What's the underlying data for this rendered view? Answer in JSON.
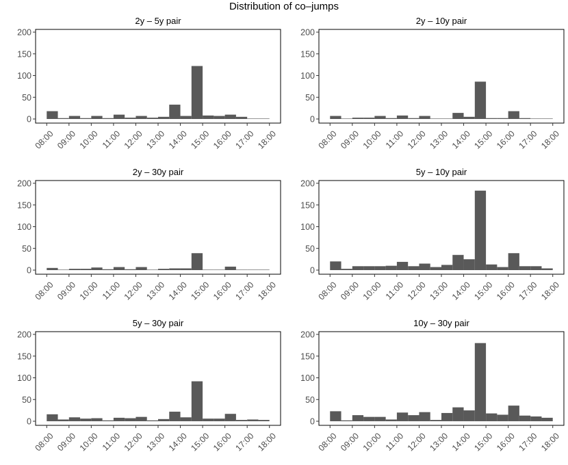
{
  "figure": {
    "title": "Distribution of co–jumps"
  },
  "chart_data": [
    {
      "type": "bar",
      "title": "2y – 5y pair",
      "ylim": [
        0,
        200
      ],
      "yticks": [
        0,
        50,
        100,
        150,
        200
      ],
      "xticks": [
        "08:00",
        "09:00",
        "10:00",
        "11:00",
        "12:00",
        "13:00",
        "14:00",
        "15:00",
        "16:00",
        "17:00",
        "18:00"
      ],
      "bin_start_hours": [
        8,
        8.5,
        9,
        9.5,
        10,
        10.5,
        11,
        11.5,
        12,
        12.5,
        13,
        13.5,
        14,
        14.5,
        15,
        15.5,
        16,
        16.5,
        17,
        17.5
      ],
      "values": [
        18,
        2,
        7,
        2,
        7,
        2,
        10,
        3,
        7,
        3,
        5,
        33,
        7,
        122,
        8,
        7,
        10,
        5,
        1,
        1
      ]
    },
    {
      "type": "bar",
      "title": "2y – 10y pair",
      "ylim": [
        0,
        200
      ],
      "yticks": [
        0,
        50,
        100,
        150,
        200
      ],
      "xticks": [
        "08:00",
        "09:00",
        "10:00",
        "11:00",
        "12:00",
        "13:00",
        "14:00",
        "15:00",
        "16:00",
        "17:00",
        "18:00"
      ],
      "bin_start_hours": [
        8,
        8.5,
        9,
        9.5,
        10,
        10.5,
        11,
        11.5,
        12,
        12.5,
        13,
        13.5,
        14,
        14.5,
        15,
        15.5,
        16,
        16.5,
        17,
        17.5
      ],
      "values": [
        7,
        1,
        3,
        3,
        7,
        2,
        8,
        2,
        7,
        1,
        1,
        14,
        5,
        86,
        2,
        2,
        18,
        2,
        1,
        1
      ]
    },
    {
      "type": "bar",
      "title": "2y – 30y pair",
      "ylim": [
        0,
        200
      ],
      "yticks": [
        0,
        50,
        100,
        150,
        200
      ],
      "xticks": [
        "08:00",
        "09:00",
        "10:00",
        "11:00",
        "12:00",
        "13:00",
        "14:00",
        "15:00",
        "16:00",
        "17:00",
        "18:00"
      ],
      "bin_start_hours": [
        8,
        8.5,
        9,
        9.5,
        10,
        10.5,
        11,
        11.5,
        12,
        12.5,
        13,
        13.5,
        14,
        14.5,
        15,
        15.5,
        16,
        16.5,
        17,
        17.5
      ],
      "values": [
        5,
        1,
        3,
        3,
        6,
        2,
        7,
        2,
        7,
        1,
        3,
        4,
        4,
        39,
        1,
        1,
        8,
        1,
        1,
        1
      ]
    },
    {
      "type": "bar",
      "title": "5y – 10y pair",
      "ylim": [
        0,
        200
      ],
      "yticks": [
        0,
        50,
        100,
        150,
        200
      ],
      "xticks": [
        "08:00",
        "09:00",
        "10:00",
        "11:00",
        "12:00",
        "13:00",
        "14:00",
        "15:00",
        "16:00",
        "17:00",
        "18:00"
      ],
      "bin_start_hours": [
        8,
        8.5,
        9,
        9.5,
        10,
        10.5,
        11,
        11.5,
        12,
        12.5,
        13,
        13.5,
        14,
        14.5,
        15,
        15.5,
        16,
        16.5,
        17,
        17.5
      ],
      "values": [
        20,
        3,
        9,
        9,
        9,
        10,
        19,
        9,
        15,
        7,
        12,
        35,
        25,
        183,
        13,
        7,
        39,
        9,
        9,
        4
      ]
    },
    {
      "type": "bar",
      "title": "5y – 30y pair",
      "ylim": [
        0,
        200
      ],
      "yticks": [
        0,
        50,
        100,
        150,
        200
      ],
      "xticks": [
        "08:00",
        "09:00",
        "10:00",
        "11:00",
        "12:00",
        "13:00",
        "14:00",
        "15:00",
        "16:00",
        "17:00",
        "18:00"
      ],
      "bin_start_hours": [
        8,
        8.5,
        9,
        9.5,
        10,
        10.5,
        11,
        11.5,
        12,
        12.5,
        13,
        13.5,
        14,
        14.5,
        15,
        15.5,
        16,
        16.5,
        17,
        17.5
      ],
      "values": [
        16,
        4,
        9,
        6,
        7,
        2,
        8,
        7,
        10,
        2,
        5,
        22,
        9,
        92,
        6,
        6,
        17,
        3,
        4,
        3
      ]
    },
    {
      "type": "bar",
      "title": "10y – 30y pair",
      "ylim": [
        0,
        200
      ],
      "yticks": [
        0,
        50,
        100,
        150,
        200
      ],
      "xticks": [
        "08:00",
        "09:00",
        "10:00",
        "11:00",
        "12:00",
        "13:00",
        "14:00",
        "15:00",
        "16:00",
        "17:00",
        "18:00"
      ],
      "bin_start_hours": [
        8,
        8.5,
        9,
        9.5,
        10,
        10.5,
        11,
        11.5,
        12,
        12.5,
        13,
        13.5,
        14,
        14.5,
        15,
        15.5,
        16,
        16.5,
        17,
        17.5
      ],
      "values": [
        23,
        2,
        14,
        10,
        10,
        4,
        20,
        14,
        21,
        3,
        19,
        32,
        25,
        180,
        18,
        15,
        36,
        13,
        11,
        8
      ]
    }
  ]
}
